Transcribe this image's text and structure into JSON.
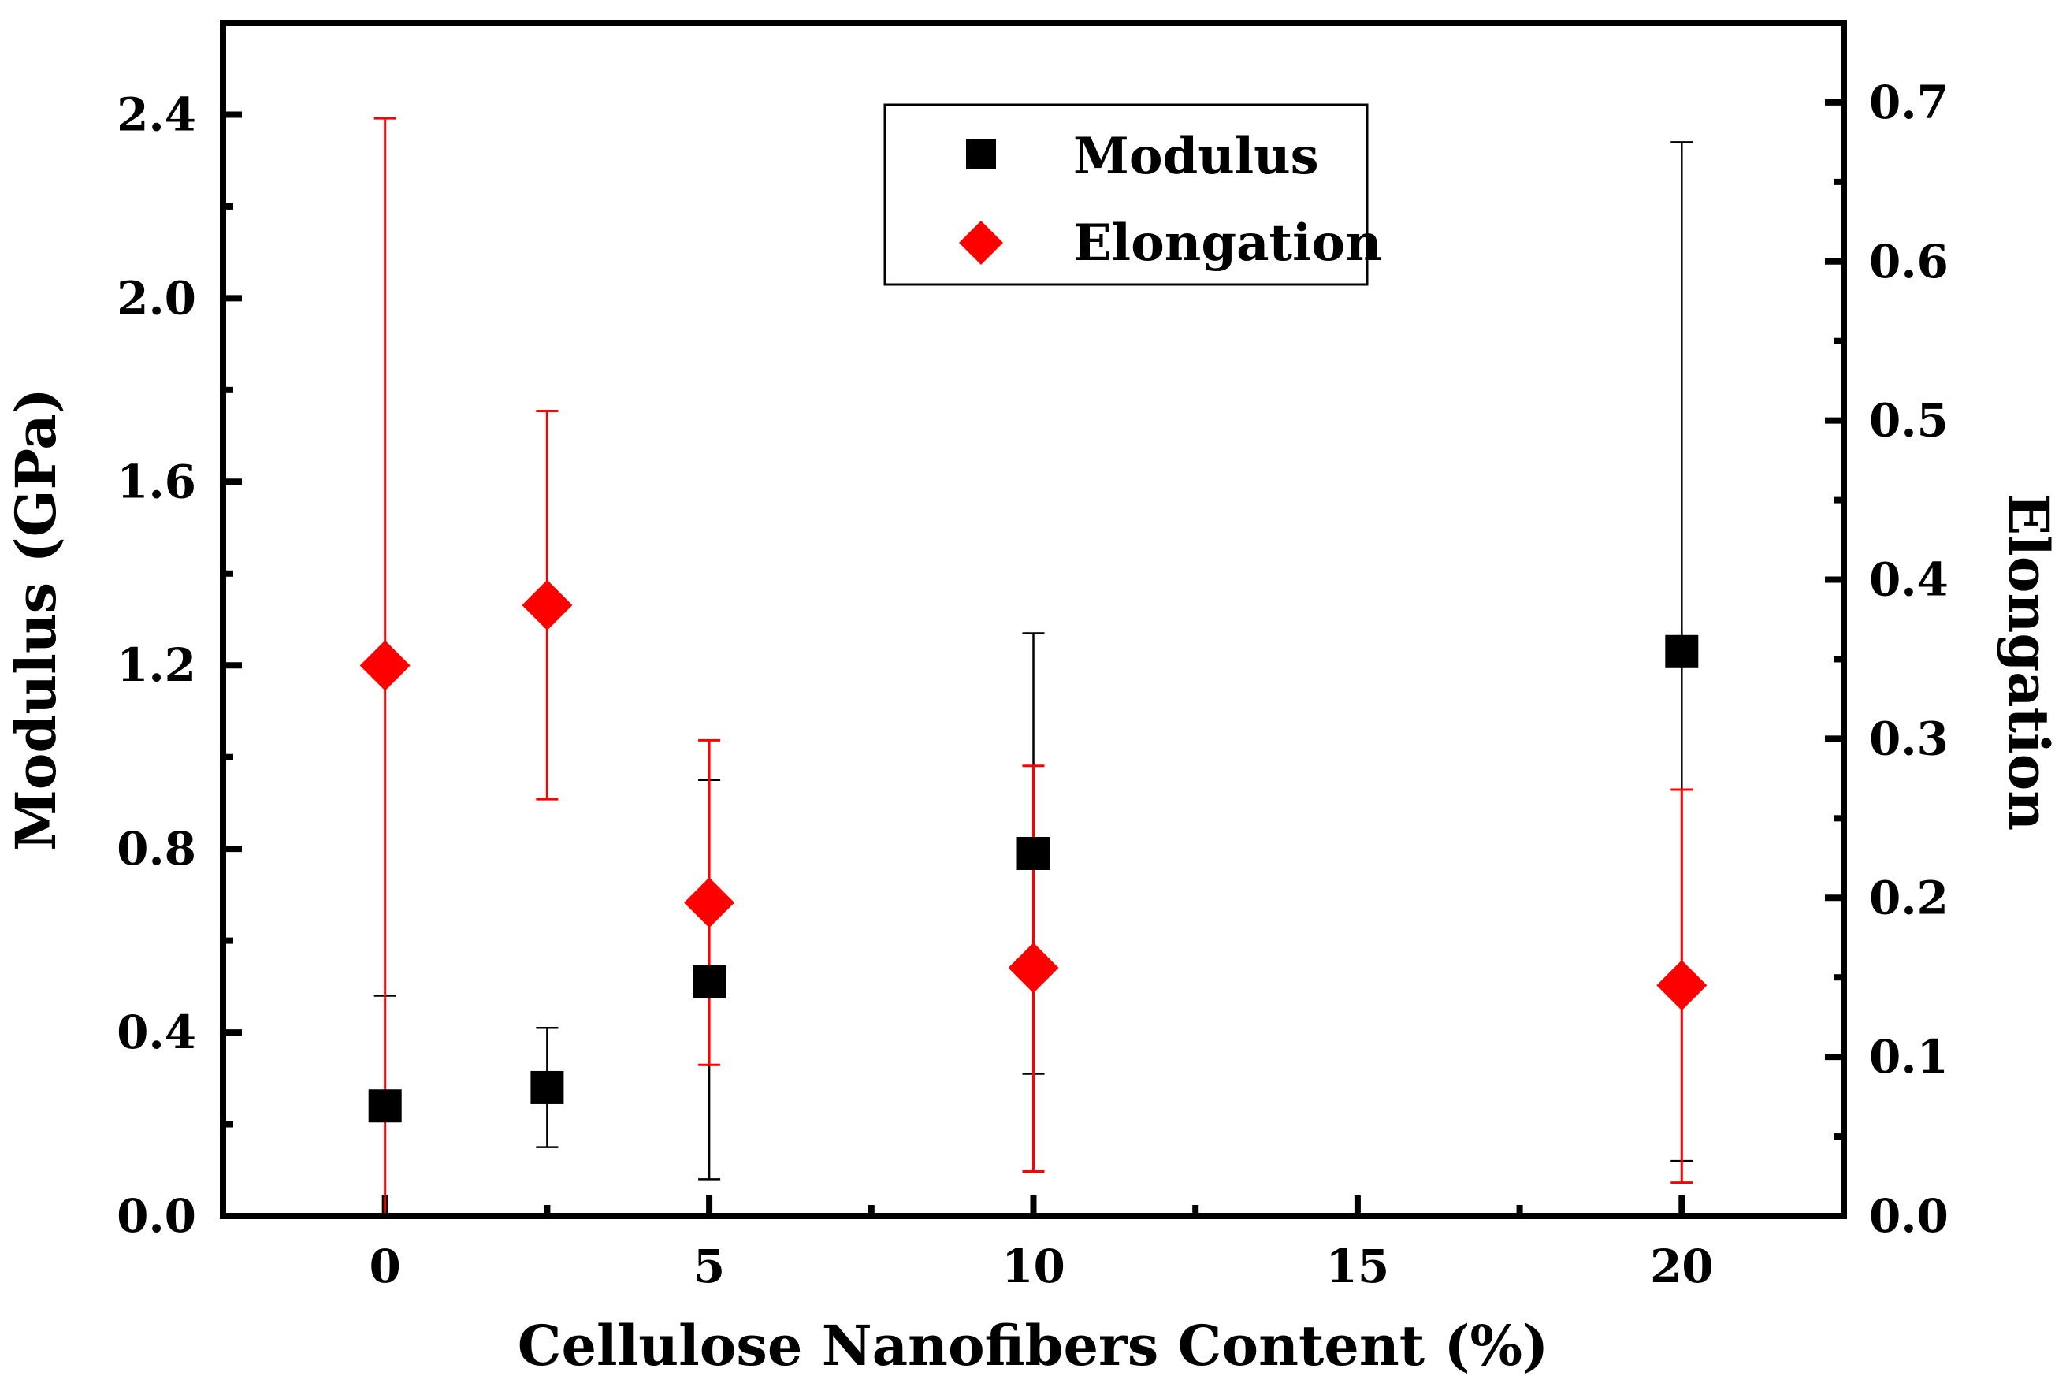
{
  "chart_data": {
    "type": "scatter",
    "xlabel": "Cellulose Nanofibers Content (%)",
    "ylabel_left": "Modulus (GPa)",
    "ylabel_right": "Elongation",
    "xlim": [
      -2.5,
      22.5
    ],
    "ylim_left": [
      0,
      2.6
    ],
    "ylim_right": [
      0,
      0.75
    ],
    "x_ticks": [
      "0",
      "5",
      "10",
      "15",
      "20"
    ],
    "y_left_ticks": [
      "0.0",
      "0.4",
      "0.8",
      "1.2",
      "1.6",
      "2.0",
      "2.4"
    ],
    "y_right_ticks": [
      "0.0",
      "0.1",
      "0.2",
      "0.3",
      "0.4",
      "0.5",
      "0.6",
      "0.7"
    ],
    "series": [
      {
        "name": "Modulus",
        "axis": "left",
        "marker": "square",
        "color": "#000000",
        "x": [
          0,
          2.5,
          5,
          10,
          20
        ],
        "y": [
          0.24,
          0.28,
          0.51,
          0.79,
          1.23
        ],
        "err_low": [
          0.0,
          0.15,
          0.08,
          0.31,
          0.12
        ],
        "err_high": [
          0.48,
          0.41,
          0.95,
          1.27,
          2.34
        ]
      },
      {
        "name": "Elongation",
        "axis": "right",
        "marker": "diamond",
        "color": "#ff0000",
        "x": [
          0,
          2.5,
          5,
          10,
          20
        ],
        "y": [
          0.346,
          0.384,
          0.197,
          0.156,
          0.145
        ],
        "err_low": [
          0.0,
          0.262,
          0.095,
          0.028,
          0.021
        ],
        "err_high": [
          0.69,
          0.506,
          0.299,
          0.283,
          0.268
        ]
      }
    ],
    "legend": {
      "position": "top-center",
      "entries": [
        "Modulus",
        "Elongation"
      ]
    }
  }
}
